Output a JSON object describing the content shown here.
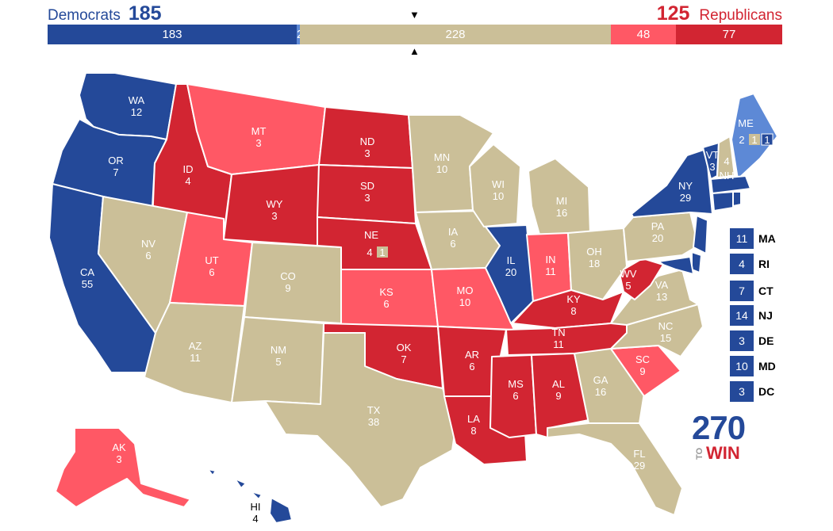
{
  "header": {
    "dem_label": "Democrats",
    "dem_total": "185",
    "rep_total": "125",
    "rep_label": "Republicans",
    "marker_top": "▼",
    "marker_bottom": "▲"
  },
  "bar": {
    "dem_safe": "183",
    "dem_likely": "2",
    "tossup": "228",
    "rep_likely": "48",
    "rep_safe": "77"
  },
  "colors": {
    "dem_safe": "#244999",
    "dem_likely": "#5d89d6",
    "tossup": "#cbbf98",
    "rep_likely": "#ff5865",
    "rep_safe": "#d22532"
  },
  "states": {
    "WA": {
      "abbr": "WA",
      "ev": "12"
    },
    "OR": {
      "abbr": "OR",
      "ev": "7"
    },
    "CA": {
      "abbr": "CA",
      "ev": "55"
    },
    "ID": {
      "abbr": "ID",
      "ev": "4"
    },
    "NV": {
      "abbr": "NV",
      "ev": "6"
    },
    "MT": {
      "abbr": "MT",
      "ev": "3"
    },
    "WY": {
      "abbr": "WY",
      "ev": "3"
    },
    "UT": {
      "abbr": "UT",
      "ev": "6"
    },
    "AZ": {
      "abbr": "AZ",
      "ev": "11"
    },
    "CO": {
      "abbr": "CO",
      "ev": "9"
    },
    "NM": {
      "abbr": "NM",
      "ev": "5"
    },
    "ND": {
      "abbr": "ND",
      "ev": "3"
    },
    "SD": {
      "abbr": "SD",
      "ev": "3"
    },
    "NE": {
      "abbr": "NE",
      "ev": "4",
      "split": "1"
    },
    "KS": {
      "abbr": "KS",
      "ev": "6"
    },
    "OK": {
      "abbr": "OK",
      "ev": "7"
    },
    "TX": {
      "abbr": "TX",
      "ev": "38"
    },
    "MN": {
      "abbr": "MN",
      "ev": "10"
    },
    "IA": {
      "abbr": "IA",
      "ev": "6"
    },
    "MO": {
      "abbr": "MO",
      "ev": "10"
    },
    "AR": {
      "abbr": "AR",
      "ev": "6"
    },
    "LA": {
      "abbr": "LA",
      "ev": "8"
    },
    "WI": {
      "abbr": "WI",
      "ev": "10"
    },
    "IL": {
      "abbr": "IL",
      "ev": "20"
    },
    "MI": {
      "abbr": "MI",
      "ev": "16"
    },
    "IN": {
      "abbr": "IN",
      "ev": "11"
    },
    "OH": {
      "abbr": "OH",
      "ev": "18"
    },
    "KY": {
      "abbr": "KY",
      "ev": "8"
    },
    "TN": {
      "abbr": "TN",
      "ev": "11"
    },
    "MS": {
      "abbr": "MS",
      "ev": "6"
    },
    "AL": {
      "abbr": "AL",
      "ev": "9"
    },
    "GA": {
      "abbr": "GA",
      "ev": "16"
    },
    "FL": {
      "abbr": "FL",
      "ev": "29"
    },
    "SC": {
      "abbr": "SC",
      "ev": "9"
    },
    "NC": {
      "abbr": "NC",
      "ev": "15"
    },
    "VA": {
      "abbr": "VA",
      "ev": "13"
    },
    "WV": {
      "abbr": "WV",
      "ev": "5"
    },
    "PA": {
      "abbr": "PA",
      "ev": "20"
    },
    "NY": {
      "abbr": "NY",
      "ev": "29"
    },
    "VT": {
      "abbr": "VT",
      "ev": "3"
    },
    "NH": {
      "abbr": "NH",
      "ev": "4"
    },
    "ME": {
      "abbr": "ME",
      "ev": "2",
      "split1": "1",
      "split2": "1"
    },
    "AK": {
      "abbr": "AK",
      "ev": "3"
    },
    "HI": {
      "abbr": "HI",
      "ev": "4"
    }
  },
  "small_states": [
    {
      "ev": "11",
      "abbr": "MA"
    },
    {
      "ev": "4",
      "abbr": "RI"
    },
    {
      "ev": "7",
      "abbr": "CT"
    },
    {
      "ev": "14",
      "abbr": "NJ"
    },
    {
      "ev": "3",
      "abbr": "DE"
    },
    {
      "ev": "10",
      "abbr": "MD"
    },
    {
      "ev": "3",
      "abbr": "DC"
    }
  ],
  "logo": {
    "number": "270",
    "to": "TO",
    "win": "WIN"
  }
}
